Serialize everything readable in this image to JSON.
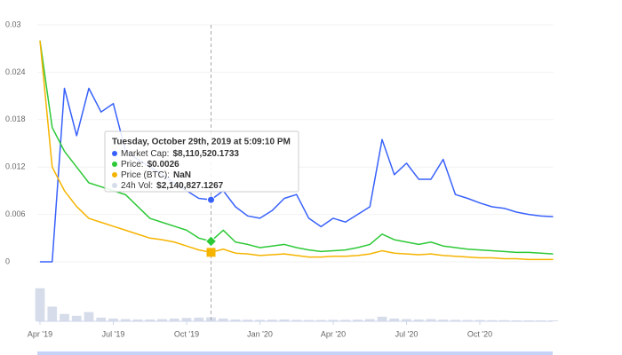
{
  "chart_data": {
    "type": "line",
    "x": [
      0,
      0.5,
      1,
      1.5,
      2,
      2.5,
      3,
      3.5,
      4,
      4.5,
      5,
      5.5,
      6,
      6.5,
      7,
      7.5,
      8,
      8.5,
      9,
      9.5,
      10,
      10.5,
      11,
      11.5,
      12,
      12.5,
      13,
      13.5,
      14,
      14.5,
      15,
      15.5,
      16,
      16.5,
      17,
      17.5,
      18,
      18.5,
      19,
      19.5,
      20,
      20.5,
      21
    ],
    "xlim": [
      0,
      21
    ],
    "xticks": [
      {
        "value": 0,
        "label": "Apr '19"
      },
      {
        "value": 3,
        "label": "Jul '19"
      },
      {
        "value": 6,
        "label": "Oct '19"
      },
      {
        "value": 9,
        "label": "Jan '20"
      },
      {
        "value": 12,
        "label": "Apr '20"
      },
      {
        "value": 15,
        "label": "Jul '20"
      },
      {
        "value": 18,
        "label": "Oct '20"
      }
    ],
    "ylim": [
      0,
      0.03
    ],
    "yticks": [
      0,
      0.006,
      0.012,
      0.018,
      0.024,
      0.03
    ],
    "y2lim": [
      0,
      31000000
    ],
    "y3lim": [
      0,
      6e-06
    ],
    "y4lim": [
      0,
      30000000
    ],
    "grid": true,
    "series": [
      {
        "color": "#3861fb",
        "axis": "y2",
        "values": [
          0,
          0,
          22700000,
          16500000,
          22700000,
          19600000,
          20700000,
          14500000,
          13400000,
          12400000,
          11400000,
          10300000,
          9300000,
          8300000,
          8110520,
          9300000,
          7200000,
          6000000,
          5700000,
          6700000,
          8300000,
          8800000,
          5700000,
          4600000,
          5700000,
          5200000,
          6200000,
          7200000,
          16000000,
          11400000,
          12900000,
          10800000,
          10800000,
          13400000,
          8800000,
          8300000,
          7700000,
          7200000,
          7000000,
          6500000,
          6200000,
          6000000,
          5900000
        ]
      },
      {
        "color": "#2dc937",
        "values": [
          0.028,
          0.017,
          0.014,
          0.012,
          0.01,
          0.0095,
          0.009,
          0.0085,
          0.007,
          0.0055,
          0.005,
          0.0045,
          0.004,
          0.003,
          0.0026,
          0.004,
          0.0025,
          0.0022,
          0.0018,
          0.002,
          0.0022,
          0.0018,
          0.0015,
          0.0013,
          0.0014,
          0.0015,
          0.0018,
          0.0022,
          0.0035,
          0.0028,
          0.0025,
          0.0022,
          0.0025,
          0.002,
          0.0018,
          0.0016,
          0.0015,
          0.0014,
          0.0013,
          0.0012,
          0.0012,
          0.0011,
          0.001
        ]
      },
      {
        "color": "#f5b400",
        "axis": "y3",
        "values": [
          5.6e-06,
          2.4e-06,
          1.8e-06,
          1.4e-06,
          1.1e-06,
          1e-06,
          9e-07,
          8e-07,
          7e-07,
          6e-07,
          5.6e-07,
          5e-07,
          4e-07,
          3e-07,
          2.4e-07,
          3.2e-07,
          2.2e-07,
          2e-07,
          1.6e-07,
          1.8e-07,
          2e-07,
          1.6e-07,
          1.2e-07,
          1.2e-07,
          1.4e-07,
          1.4e-07,
          1.6e-07,
          2e-07,
          2.8e-07,
          2.2e-07,
          2e-07,
          1.8e-07,
          2e-07,
          1.6e-07,
          1.4e-07,
          1.2e-07,
          1e-07,
          1e-07,
          8e-08,
          8e-08,
          6e-08,
          6e-08,
          6e-08
        ]
      },
      {
        "color": "#d6dcea",
        "axis": "y4",
        "values": [
          18000000,
          8000000,
          4000000,
          3000000,
          5000000,
          2000000,
          1500000,
          1200000,
          1000000,
          1000000,
          1200000,
          1500000,
          1800000,
          2000000,
          2140827,
          1500000,
          1000000,
          900000,
          800000,
          900000,
          1000000,
          800000,
          700000,
          700000,
          800000,
          800000,
          900000,
          1200000,
          2500000,
          1500000,
          1200000,
          1000000,
          1200000,
          900000,
          800000,
          700000,
          700000,
          600000,
          600000,
          500000,
          500000,
          500000,
          500000
        ]
      }
    ],
    "tooltip": {
      "title": "Tuesday, October 29th, 2019 at 5:09:10 PM",
      "index": 14,
      "items": [
        {
          "label": "Market Cap:",
          "value": "$8,110,520.1733"
        },
        {
          "label": "Price:",
          "value": "$0.0026"
        },
        {
          "label": "Price (BTC):",
          "value": "NaN"
        },
        {
          "label": "24h Vol:",
          "value": "$2,140,827.1267"
        }
      ]
    }
  }
}
